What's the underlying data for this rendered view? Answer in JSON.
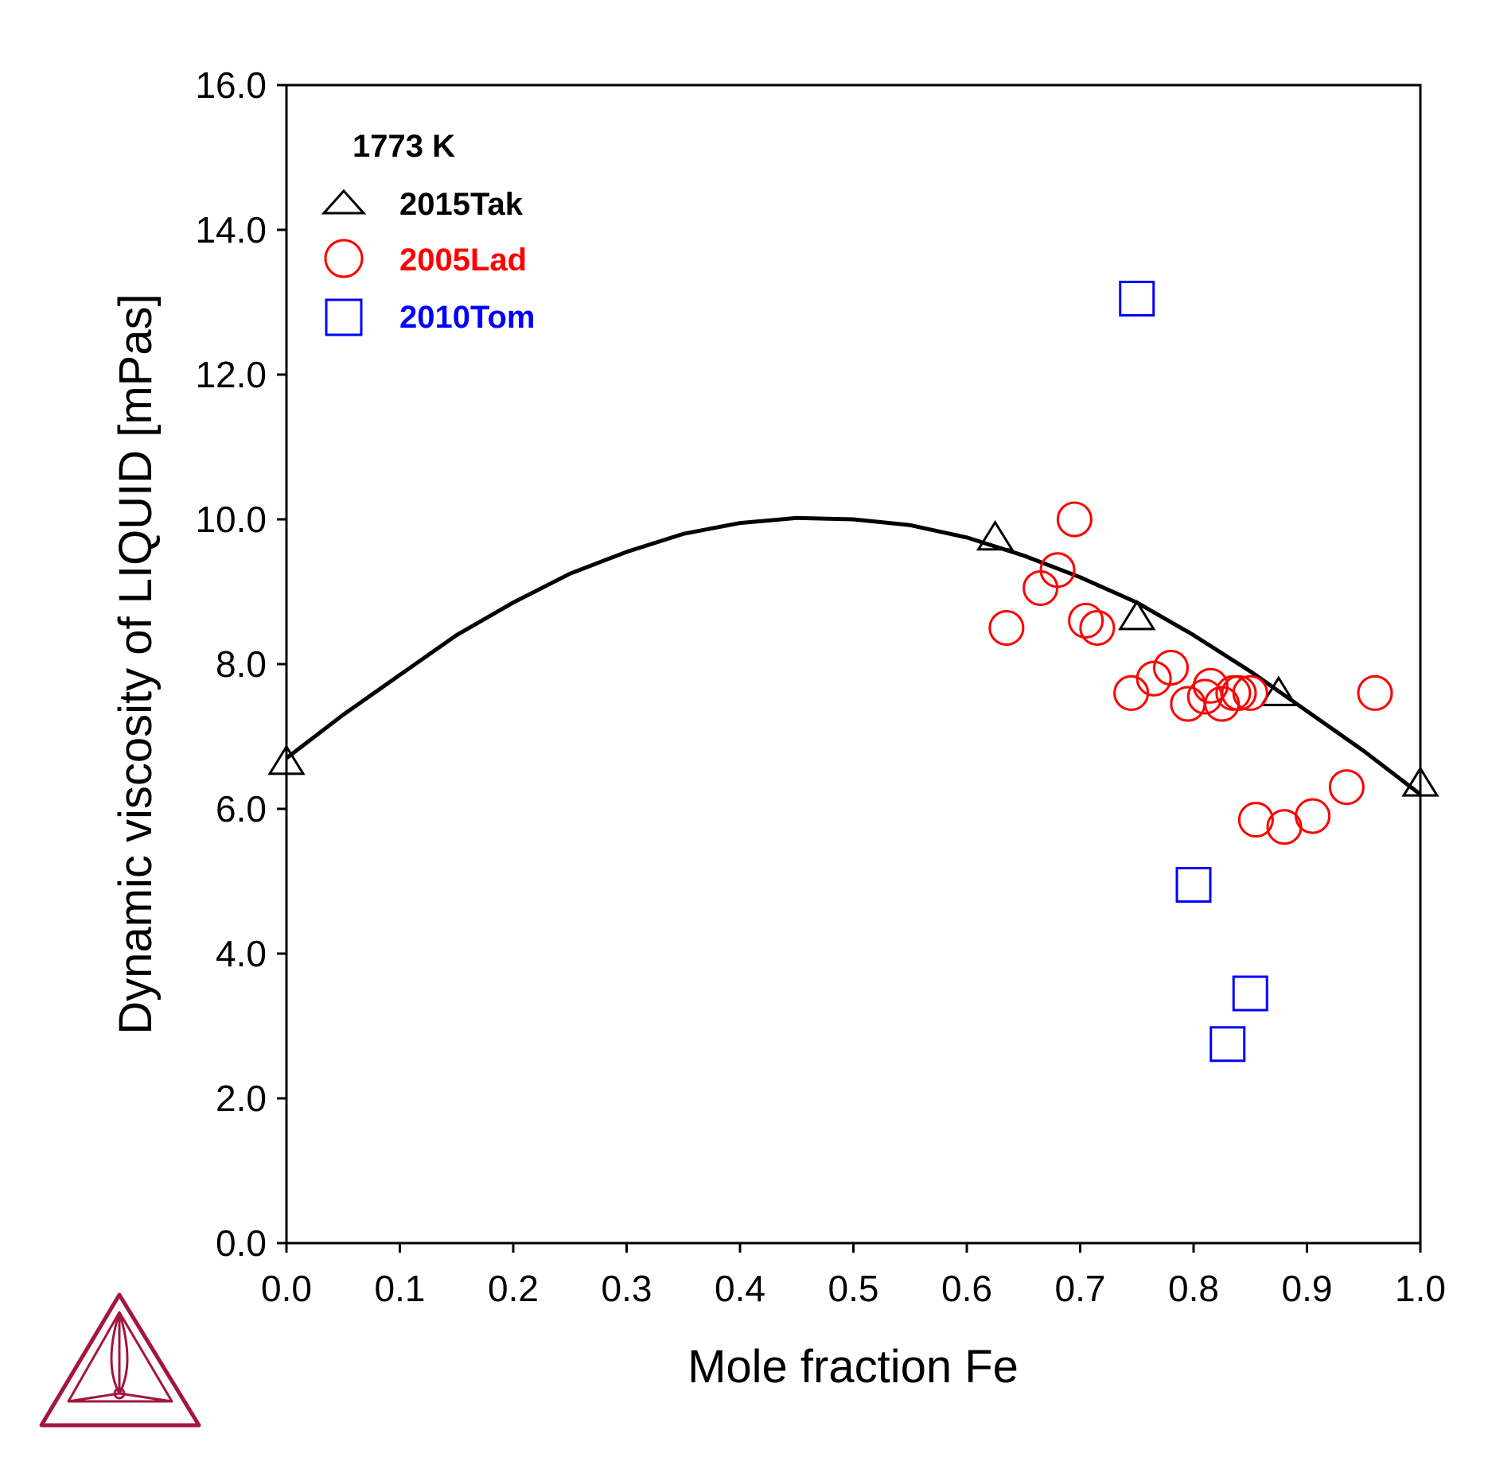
{
  "chart_data": {
    "type": "scatter",
    "title": "",
    "xlabel": "Mole fraction Fe",
    "ylabel": "Dynamic viscosity of LIQUID [mPas]",
    "xlim": [
      0.0,
      1.0
    ],
    "ylim": [
      0.0,
      16.0
    ],
    "x_ticks": [
      "0.0",
      "0.1",
      "0.2",
      "0.3",
      "0.4",
      "0.5",
      "0.6",
      "0.7",
      "0.8",
      "0.9",
      "1.0"
    ],
    "y_ticks": [
      "0.0",
      "2.0",
      "4.0",
      "6.0",
      "8.0",
      "10.0",
      "12.0",
      "14.0",
      "16.0"
    ],
    "grid": false,
    "legend": {
      "placement": "top-left",
      "header": "1773 K"
    },
    "calculated_curve": {
      "color": "#000000",
      "x": [
        0.0,
        0.05,
        0.1,
        0.15,
        0.2,
        0.25,
        0.3,
        0.35,
        0.4,
        0.45,
        0.5,
        0.55,
        0.6,
        0.65,
        0.7,
        0.75,
        0.8,
        0.85,
        0.9,
        0.95,
        1.0
      ],
      "y": [
        6.7,
        7.3,
        7.85,
        8.4,
        8.85,
        9.25,
        9.55,
        9.8,
        9.95,
        10.02,
        10.0,
        9.92,
        9.75,
        9.5,
        9.2,
        8.85,
        8.4,
        7.9,
        7.35,
        6.8,
        6.2
      ]
    },
    "series": [
      {
        "name": "2015Tak",
        "marker": "triangle",
        "color": "#000000",
        "x": [
          0.0,
          0.625,
          0.75,
          0.875,
          1.0
        ],
        "y": [
          6.65,
          9.75,
          8.65,
          7.6,
          6.35
        ]
      },
      {
        "name": "2005Lad",
        "marker": "circle",
        "color": "#ff0000",
        "x": [
          0.635,
          0.665,
          0.68,
          0.695,
          0.705,
          0.715,
          0.745,
          0.765,
          0.78,
          0.795,
          0.81,
          0.815,
          0.825,
          0.835,
          0.84,
          0.85,
          0.855,
          0.88,
          0.905,
          0.935,
          0.96
        ],
        "y": [
          8.5,
          9.05,
          9.3,
          10.0,
          8.6,
          8.5,
          7.6,
          7.8,
          7.95,
          7.45,
          7.55,
          7.7,
          7.45,
          7.6,
          7.6,
          7.6,
          5.85,
          5.75,
          5.9,
          6.3,
          7.6
        ]
      },
      {
        "name": "2010Tom",
        "marker": "square",
        "color": "#0000ff",
        "x": [
          0.75,
          0.8,
          0.83,
          0.85
        ],
        "y": [
          13.05,
          4.95,
          2.75,
          3.45
        ]
      }
    ]
  },
  "logo": {
    "name": "thermo-calc-logo",
    "color": "#a3163d"
  }
}
